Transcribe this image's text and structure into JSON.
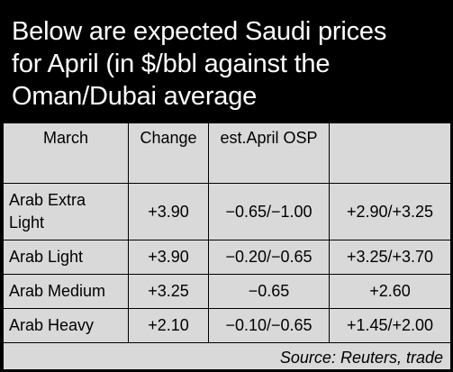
{
  "title_lines": [
    "Below are expected Saudi prices",
    "for April (in $/bbl against the",
    "Oman/Dubai average"
  ],
  "table": {
    "headers": [
      "March",
      "Change",
      "est.April OSP",
      ""
    ],
    "rows": [
      {
        "grade": "Arab Extra Light",
        "march": "+3.90",
        "change": "−0.65/−1.00",
        "osp": "+2.90/+3.25"
      },
      {
        "grade": "Arab Light",
        "march": "+3.90",
        "change": "−0.20/−0.65",
        "osp": "+3.25/+3.70"
      },
      {
        "grade": "Arab Medium",
        "march": "+3.25",
        "change": "−0.65",
        "osp": "+2.60"
      },
      {
        "grade": "Arab Heavy",
        "march": "+2.10",
        "change": "−0.10/−0.65",
        "osp": "+1.45/+2.00"
      }
    ]
  },
  "source": "Source: Reuters, trade",
  "colors": {
    "header_bg": "#000000",
    "header_text": "#ffffff",
    "table_bg": "#d9d9d9"
  }
}
